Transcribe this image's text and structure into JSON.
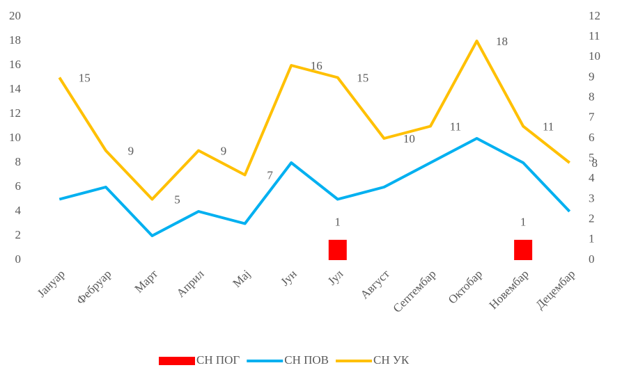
{
  "chart_data": {
    "type": "line",
    "categories": [
      "Јануар",
      "Фебруар",
      "Март",
      "Април",
      "Мај",
      "Јун",
      "Јул",
      "Август",
      "Септембар",
      "Октобар",
      "Новембар",
      "Децембар"
    ],
    "series": [
      {
        "name": "СН ПОГ",
        "type": "bar",
        "axis": "y2",
        "color": "#ff0000",
        "values": [
          null,
          null,
          null,
          null,
          null,
          null,
          1,
          null,
          null,
          null,
          1,
          null
        ]
      },
      {
        "name": "СН ПОВ",
        "type": "line",
        "color": "#00b0f0",
        "values": [
          5,
          6,
          2,
          4,
          3,
          8,
          5,
          6,
          8,
          10,
          8,
          4
        ]
      },
      {
        "name": "СН УК",
        "type": "line",
        "color": "#ffc000",
        "values": [
          15,
          9,
          5,
          9,
          7,
          16,
          15,
          10,
          11,
          18,
          11,
          8
        ]
      }
    ],
    "ylim": [
      0,
      20
    ],
    "yticks": [
      0,
      2,
      4,
      6,
      8,
      10,
      12,
      14,
      16,
      18,
      20
    ],
    "y2lim": [
      0,
      12
    ],
    "y2ticks": [
      0,
      1,
      2,
      3,
      4,
      5,
      6,
      7,
      8,
      9,
      10,
      11,
      12
    ],
    "grid": false,
    "legend": "bottom"
  }
}
